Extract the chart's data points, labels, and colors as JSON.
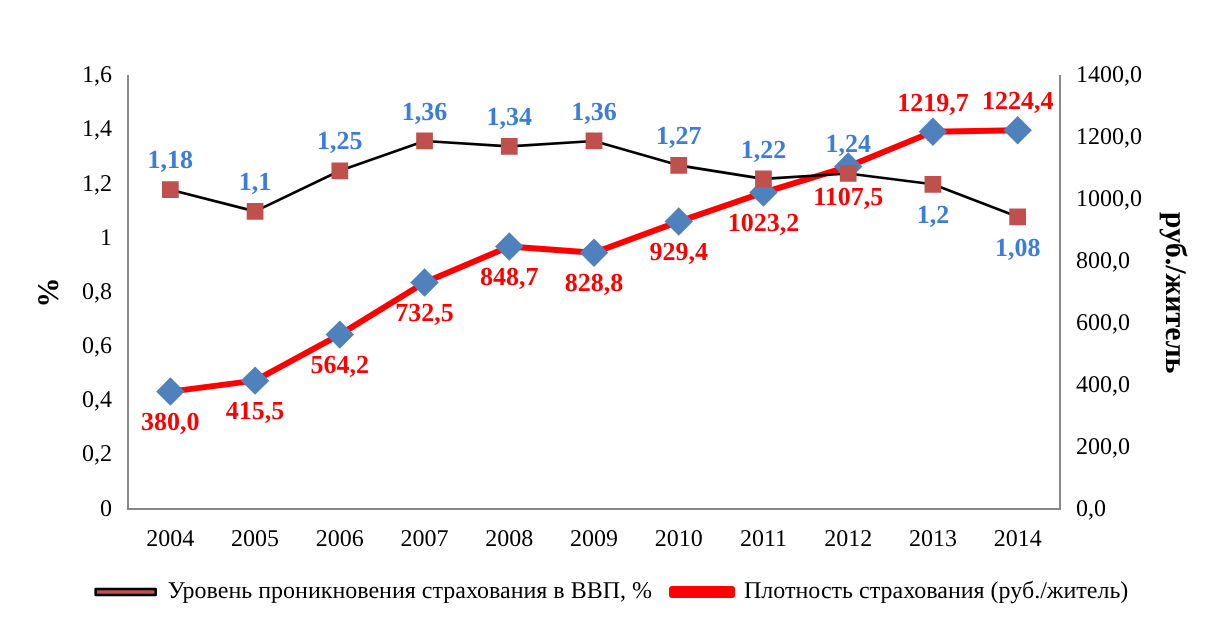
{
  "chart_data": {
    "type": "line",
    "categories": [
      "2004",
      "2005",
      "2006",
      "2007",
      "2008",
      "2009",
      "2010",
      "2011",
      "2012",
      "2013",
      "2014"
    ],
    "series": [
      {
        "name": "Уровень проникновения страхования в ВВП, %",
        "color": "#000000",
        "marker": "square",
        "values": [
          1.18,
          1.1,
          1.25,
          1.36,
          1.34,
          1.36,
          1.27,
          1.22,
          1.24,
          1.2,
          1.08
        ],
        "value_labels": [
          "1,18",
          "1,1",
          "1,25",
          "1,36",
          "1,34",
          "1,36",
          "1,27",
          "1,22",
          "1,24",
          "1,2",
          "1,08"
        ]
      },
      {
        "name": "Плотность страхования (руб./житель)",
        "color": "#ff0000",
        "marker": "diamond",
        "axis": "y2",
        "values": [
          380.0,
          415.5,
          564.2,
          732.5,
          848.7,
          828.8,
          929.4,
          1023.2,
          1107.5,
          1219.7,
          1224.4
        ],
        "value_labels": [
          "380,0",
          "415,5",
          "564,2",
          "732,5",
          "848,7",
          "828,8",
          "929,4",
          "1023,2",
          "1107,5",
          "1219,7",
          "1224,4"
        ]
      }
    ],
    "ylabel": "%",
    "y2label": "руб./житель",
    "ylim": [
      0,
      1.6
    ],
    "yticks": [
      0,
      {
        "value": 0.2,
        "label": "0,2"
      },
      {
        "value": 0.4,
        "label": "0,4"
      },
      {
        "value": 0.6,
        "label": "0,6"
      },
      {
        "value": 0.8,
        "label": "0,8"
      },
      1,
      {
        "value": 1.2,
        "label": "1,2"
      },
      {
        "value": 1.4,
        "label": "1,4"
      },
      {
        "value": 1.6,
        "label": "1,6"
      }
    ],
    "y2lim": [
      0,
      1400
    ],
    "y2ticks": [
      {
        "value": 0,
        "label": "0,0"
      },
      {
        "value": 200,
        "label": "200,0"
      },
      {
        "value": 400,
        "label": "400,0"
      },
      {
        "value": 600,
        "label": "600,0"
      },
      {
        "value": 800,
        "label": "800,0"
      },
      {
        "value": 1000,
        "label": "1000,0"
      },
      {
        "value": 1200,
        "label": "1200,0"
      },
      {
        "value": 1400,
        "label": "1400,0"
      }
    ],
    "legend": "bottom",
    "grid": false
  }
}
